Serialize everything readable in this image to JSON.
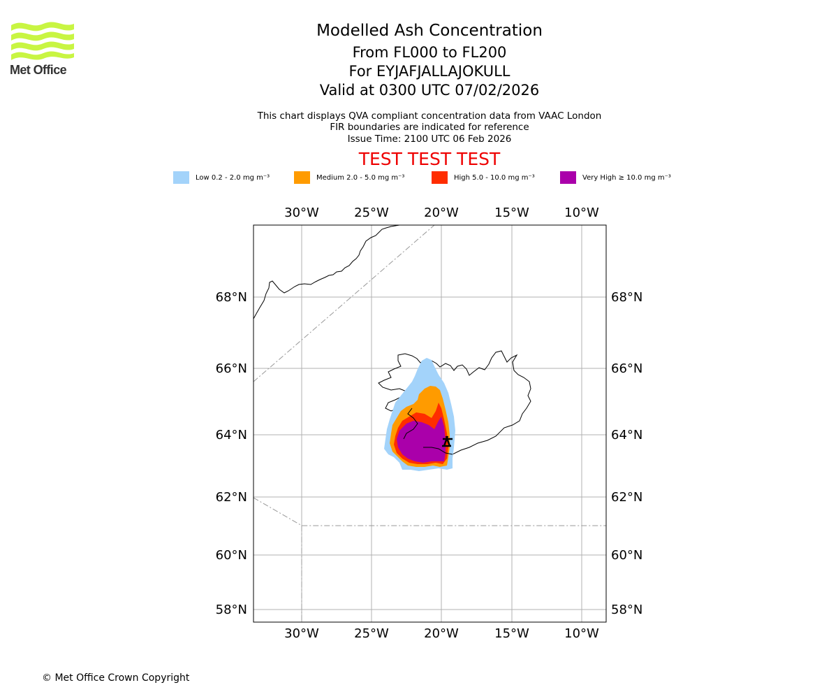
{
  "logo": {
    "name": "Met Office"
  },
  "header": {
    "title": "Modelled Ash Concentration",
    "levels": "From FL000 to FL200",
    "volcano": "For EYJAFJALLAJOKULL",
    "valid": "Valid at 0300 UTC 07/02/2026",
    "note_1": "This chart displays QVA compliant concentration data from VAAC London",
    "note_2": "FIR boundaries are indicated for reference",
    "issue_time": "Issue Time: 2100 UTC 06 Feb 2026",
    "test_banner": "TEST TEST TEST"
  },
  "legend": [
    {
      "label": "Low 0.2 - 2.0 mg m⁻³",
      "color": "#a3d3fa"
    },
    {
      "label": "Medium 2.0 - 5.0 mg m⁻³",
      "color": "#ff9b00"
    },
    {
      "label": "High 5.0 - 10.0 mg m⁻³",
      "color": "#ff2d00"
    },
    {
      "label": "Very High ≥ 10.0 mg m⁻³",
      "color": "#aa00aa"
    }
  ],
  "map": {
    "lon_labels": [
      "30°W",
      "25°W",
      "20°W",
      "15°W",
      "10°W"
    ],
    "lat_labels": [
      "68°N",
      "66°N",
      "64°N",
      "62°N",
      "60°N",
      "58°N"
    ],
    "volcano_marker": "EYJAFJALLAJOKULL"
  },
  "footer": {
    "copyright": "© Met Office Crown Copyright"
  }
}
